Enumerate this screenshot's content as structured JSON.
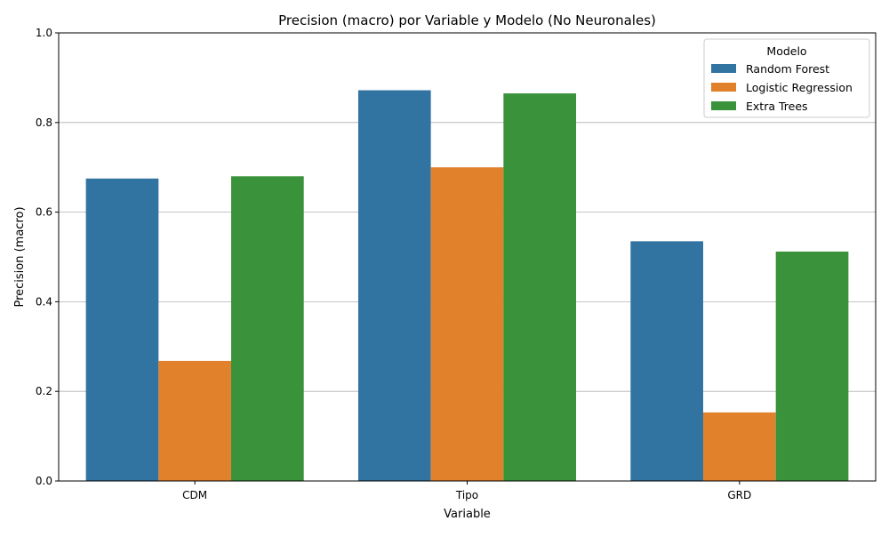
{
  "chart_data": {
    "type": "bar",
    "title": "Precision (macro) por Variable y Modelo (No Neuronales)",
    "xlabel": "Variable",
    "ylabel": "Precision (macro)",
    "categories": [
      "CDM",
      "Tipo",
      "GRD"
    ],
    "series": [
      {
        "name": "Random Forest",
        "color": "#3274a1",
        "values": [
          0.675,
          0.872,
          0.535
        ]
      },
      {
        "name": "Logistic Regression",
        "color": "#e1812c",
        "values": [
          0.268,
          0.7,
          0.153
        ]
      },
      {
        "name": "Extra Trees",
        "color": "#3a923a",
        "values": [
          0.68,
          0.865,
          0.512
        ]
      }
    ],
    "ylim": [
      0,
      1.0
    ],
    "yticks": [
      "0.0",
      "0.2",
      "0.4",
      "0.6",
      "0.8",
      "1.0"
    ],
    "grid": "horizontal",
    "legend": {
      "title": "Modelo",
      "placement": "top-right"
    }
  }
}
